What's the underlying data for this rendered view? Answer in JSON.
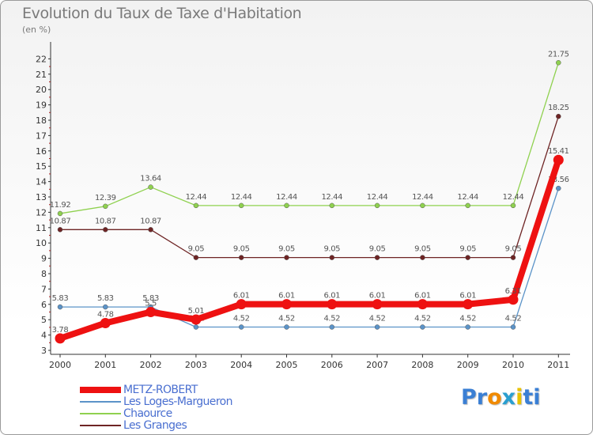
{
  "chart_data": {
    "type": "line",
    "title": "Evolution du Taux de Taxe d'Habitation",
    "unit_label": "(en %)",
    "x": [
      "2000",
      "2001",
      "2002",
      "2003",
      "2004",
      "2005",
      "2006",
      "2007",
      "2008",
      "2009",
      "2010",
      "2011"
    ],
    "ylim": [
      3,
      22
    ],
    "yticks": [
      "3",
      "4",
      "5",
      "6",
      "7",
      "8",
      "9",
      "10",
      "11",
      "12",
      "13",
      "14",
      "15",
      "16",
      "17",
      "18",
      "19",
      "20",
      "21",
      "22"
    ],
    "grid": false,
    "legend_position": "bottom-left",
    "series": [
      {
        "name": "Chaource",
        "color": "#8fd14f",
        "values": [
          11.92,
          12.39,
          13.64,
          12.44,
          12.44,
          12.44,
          12.44,
          12.44,
          12.44,
          12.44,
          12.44,
          21.75
        ],
        "labels": [
          "11.92",
          "12.39",
          "13.64",
          "12.44",
          "12.44",
          "12.44",
          "12.44",
          "12.44",
          "12.44",
          "12.44",
          "12.44",
          "21.75"
        ]
      },
      {
        "name": "Les Granges",
        "color": "#6e2424",
        "values": [
          10.87,
          10.87,
          10.87,
          9.05,
          9.05,
          9.05,
          9.05,
          9.05,
          9.05,
          9.05,
          9.05,
          18.25
        ],
        "labels": [
          "10.87",
          "10.87",
          "10.87",
          "9.05",
          "9.05",
          "9.05",
          "9.05",
          "9.05",
          "9.05",
          "9.05",
          "9.05",
          "18.25"
        ]
      },
      {
        "name": "Les Loges-Margueron",
        "color": "#5b93c8",
        "values": [
          5.83,
          5.83,
          5.83,
          4.52,
          4.52,
          4.52,
          4.52,
          4.52,
          4.52,
          4.52,
          4.52,
          13.56
        ],
        "labels": [
          "5.83",
          "5.83",
          "5.83",
          "4.52",
          "4.52",
          "4.52",
          "4.52",
          "4.52",
          "4.52",
          "4.52",
          "4.52",
          "13.56"
        ]
      },
      {
        "name": "METZ-ROBERT",
        "color": "#ee1111",
        "values": [
          3.78,
          4.78,
          5.5,
          5.01,
          6.01,
          6.01,
          6.01,
          6.01,
          6.01,
          6.01,
          6.31,
          15.41
        ],
        "labels": [
          "3.78",
          "4.78",
          "5.5",
          "5.01",
          "6.01",
          "6.01",
          "6.01",
          "6.01",
          "6.01",
          "6.01",
          "6.31",
          "15.41"
        ]
      }
    ],
    "legend_order": [
      "METZ-ROBERT",
      "Les Loges-Margueron",
      "Chaource",
      "Les Granges"
    ]
  },
  "brand": {
    "parts": [
      "Pr",
      "o",
      "x",
      "i",
      "ti"
    ],
    "colors": [
      "#3a7fd4",
      "#f08a00",
      "#2a9fd0",
      "#e8c200",
      "#3a7fd4"
    ]
  }
}
